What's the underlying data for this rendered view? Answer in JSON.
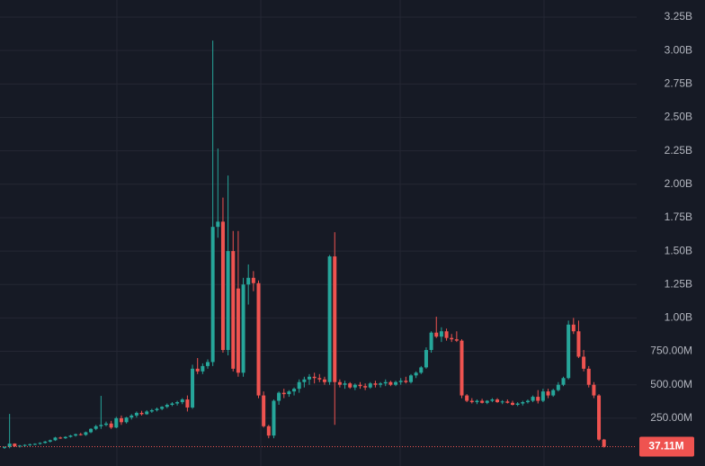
{
  "chart_data": {
    "type": "candlestick",
    "open": [
      30,
      35,
      60,
      40,
      45,
      50,
      55,
      58,
      65,
      75,
      85,
      105,
      100,
      110,
      120,
      130,
      125,
      145,
      170,
      190,
      200,
      210,
      180,
      250,
      220,
      255,
      270,
      290,
      280,
      300,
      310,
      320,
      335,
      350,
      360,
      370,
      390,
      330,
      620,
      600,
      640,
      670,
      1681,
      1720,
      760,
      1500,
      1220,
      590,
      1250,
      1300,
      1260,
      420,
      190,
      120,
      380,
      440,
      430,
      450,
      470,
      520,
      540,
      560,
      550,
      540,
      520,
      1460,
      520,
      500,
      510,
      480,
      500,
      490,
      480,
      510,
      500,
      510,
      520,
      500,
      520,
      530,
      520,
      570,
      590,
      630,
      760,
      890,
      860,
      900,
      850,
      840,
      830,
      420,
      380,
      370,
      380,
      365,
      380,
      390,
      370,
      375,
      365,
      350,
      360,
      370,
      380,
      410,
      380,
      450,
      420,
      460,
      500,
      550,
      950,
      900,
      710,
      620,
      500,
      420,
      90
    ],
    "high": [
      40,
      282,
      62,
      50,
      55,
      60,
      62,
      70,
      80,
      90,
      110,
      112,
      115,
      125,
      135,
      140,
      150,
      175,
      200,
      417,
      225,
      230,
      260,
      270,
      260,
      280,
      300,
      305,
      310,
      320,
      330,
      340,
      360,
      370,
      380,
      400,
      420,
      650,
      700,
      660,
      690,
      3074,
      2267,
      1900,
      2065,
      1650,
      1650,
      1300,
      1400,
      1350,
      1280,
      450,
      200,
      390,
      450,
      470,
      460,
      480,
      540,
      560,
      580,
      590,
      580,
      560,
      1470,
      1641,
      540,
      530,
      520,
      510,
      520,
      510,
      520,
      530,
      520,
      540,
      530,
      530,
      550,
      560,
      580,
      600,
      640,
      780,
      900,
      1009,
      930,
      920,
      880,
      900,
      840,
      430,
      400,
      390,
      395,
      385,
      400,
      400,
      385,
      390,
      380,
      370,
      380,
      390,
      420,
      460,
      470,
      470,
      470,
      520,
      560,
      980,
      1000,
      980,
      760,
      640,
      520,
      430,
      95
    ],
    "low": [
      20,
      25,
      35,
      30,
      38,
      42,
      48,
      52,
      60,
      68,
      80,
      95,
      95,
      105,
      112,
      120,
      118,
      138,
      160,
      170,
      190,
      170,
      175,
      200,
      210,
      240,
      255,
      270,
      275,
      290,
      300,
      310,
      325,
      340,
      345,
      355,
      300,
      320,
      580,
      580,
      620,
      640,
      1600,
      740,
      720,
      600,
      560,
      560,
      1100,
      1200,
      400,
      180,
      100,
      100,
      350,
      400,
      410,
      420,
      440,
      480,
      500,
      510,
      520,
      500,
      500,
      200,
      480,
      470,
      470,
      460,
      470,
      460,
      470,
      480,
      480,
      490,
      490,
      490,
      500,
      510,
      510,
      550,
      580,
      620,
      740,
      850,
      820,
      830,
      820,
      820,
      400,
      370,
      360,
      355,
      360,
      355,
      370,
      365,
      355,
      360,
      345,
      340,
      345,
      360,
      370,
      360,
      370,
      400,
      410,
      450,
      490,
      540,
      880,
      700,
      600,
      480,
      400,
      80,
      30
    ],
    "close": [
      35,
      60,
      40,
      45,
      50,
      55,
      58,
      65,
      75,
      85,
      105,
      100,
      110,
      120,
      130,
      125,
      145,
      170,
      190,
      200,
      210,
      180,
      250,
      220,
      255,
      270,
      290,
      280,
      300,
      310,
      320,
      335,
      350,
      360,
      370,
      390,
      330,
      620,
      600,
      640,
      670,
      1681,
      1720,
      760,
      1500,
      620,
      590,
      1250,
      1300,
      1260,
      420,
      190,
      120,
      380,
      440,
      430,
      450,
      470,
      520,
      540,
      560,
      550,
      540,
      520,
      1460,
      520,
      500,
      510,
      480,
      500,
      490,
      480,
      510,
      500,
      510,
      520,
      500,
      520,
      530,
      520,
      570,
      590,
      630,
      760,
      890,
      860,
      900,
      850,
      840,
      830,
      420,
      380,
      370,
      380,
      365,
      380,
      390,
      370,
      375,
      365,
      350,
      360,
      370,
      380,
      410,
      380,
      450,
      420,
      460,
      500,
      550,
      950,
      900,
      710,
      620,
      500,
      420,
      90,
      37.11
    ],
    "last_value_label": "37.11M",
    "up_color": "#26a69a",
    "down_color": "#ef5350",
    "grid": true,
    "ylim": [
      -107.6,
      3378
    ],
    "yticks": [
      {
        "value": 250,
        "label": "250.00M"
      },
      {
        "value": 500,
        "label": "500.00M"
      },
      {
        "value": 750,
        "label": "750.00M"
      },
      {
        "value": 1000,
        "label": "1.00B"
      },
      {
        "value": 1250,
        "label": "1.25B"
      },
      {
        "value": 1500,
        "label": "1.50B"
      },
      {
        "value": 1750,
        "label": "1.75B"
      },
      {
        "value": 2000,
        "label": "2.00B"
      },
      {
        "value": 2250,
        "label": "2.25B"
      },
      {
        "value": 2500,
        "label": "2.50B"
      },
      {
        "value": 2750,
        "label": "2.75B"
      },
      {
        "value": 3000,
        "label": "3.00B"
      },
      {
        "value": 3250,
        "label": "3.25B"
      }
    ]
  }
}
